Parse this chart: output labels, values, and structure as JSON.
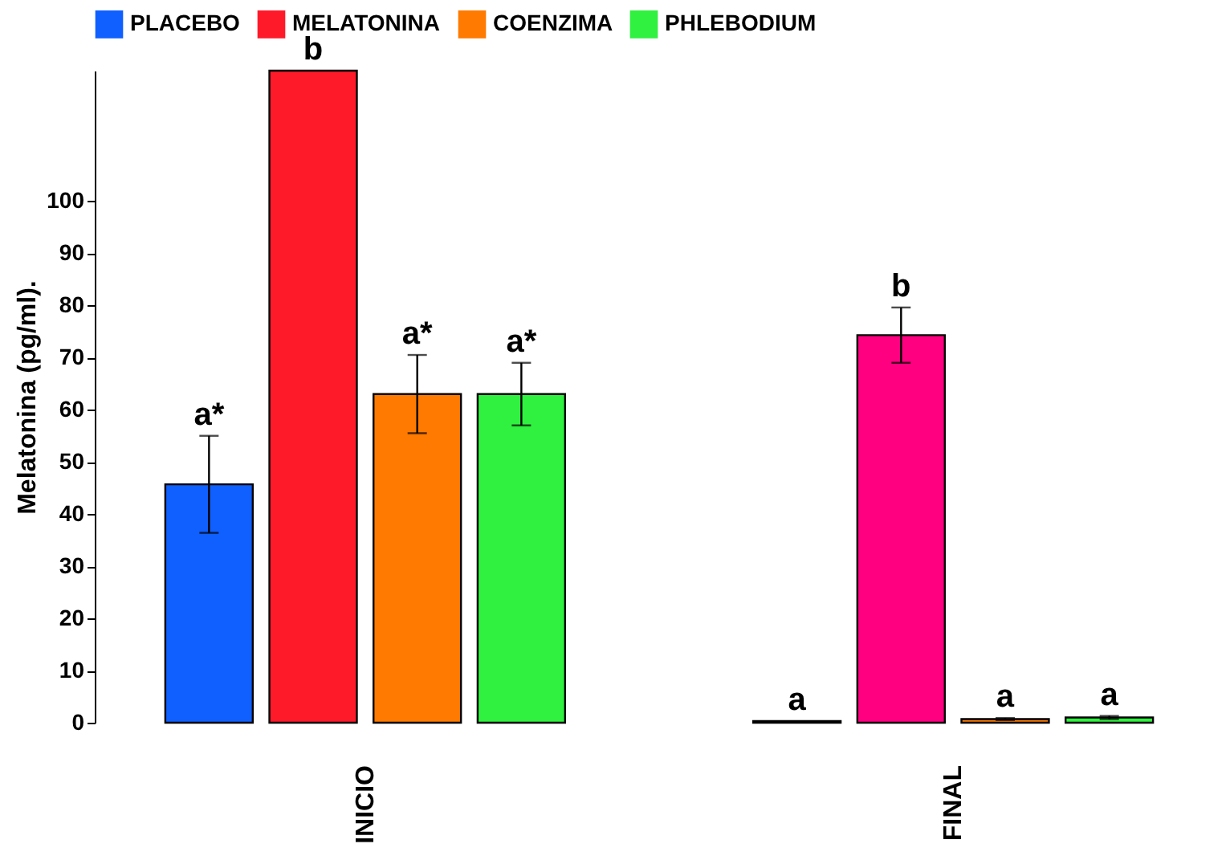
{
  "chart_data": {
    "type": "bar",
    "ylabel": "Melatonina (pg/ml).",
    "categories": [
      "INICIO",
      "FINAL"
    ],
    "ylim": [
      0,
      125
    ],
    "yticks": [
      0,
      10,
      20,
      30,
      40,
      50,
      60,
      70,
      80,
      90,
      100
    ],
    "grid": false,
    "legend": "top",
    "series": [
      {
        "name": "PLACEBO",
        "color": "#1060ff",
        "values": [
          45.7,
          0.3
        ],
        "errors": [
          9.3,
          null
        ],
        "value_labels": [
          "a*",
          "a"
        ]
      },
      {
        "name": "MELATONINA",
        "color": "#ff1a2a",
        "colors": [
          "#ff1a2a",
          "#ff0080"
        ],
        "values": [
          125,
          74.3
        ],
        "errors": [
          null,
          5.3
        ],
        "value_labels": [
          "b",
          "b"
        ]
      },
      {
        "name": "COENZIMA",
        "color": "#ff7a00",
        "values": [
          63,
          0.7
        ],
        "errors": [
          7.5,
          0.2
        ],
        "value_labels": [
          "a*",
          "a"
        ]
      },
      {
        "name": "PHLEBODIUM",
        "color": "#30f040",
        "values": [
          63,
          1.0
        ],
        "errors": [
          6,
          0.3
        ],
        "value_labels": [
          "a*",
          "a"
        ]
      }
    ]
  }
}
